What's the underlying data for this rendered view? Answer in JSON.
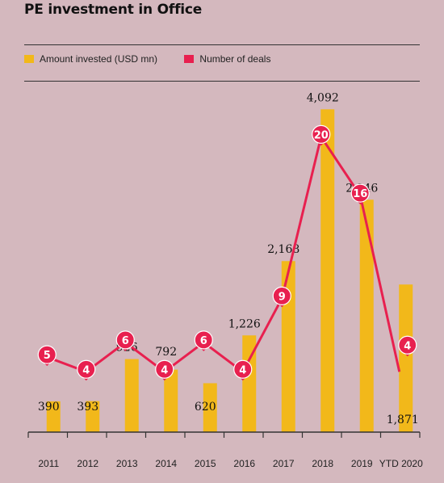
{
  "title": "PE investment in Office",
  "legend": {
    "amount_label": "Amount invested (USD mn)",
    "deals_label": "Number of deals"
  },
  "colors": {
    "bar": "#f2b81a",
    "line": "#e8204f",
    "background": "#d4b8be",
    "text": "#111111"
  },
  "chart_data": {
    "type": "bar",
    "categories": [
      "2011",
      "2012",
      "2013",
      "2014",
      "2015",
      "2016",
      "2017",
      "2018",
      "2019",
      "YTD 2020"
    ],
    "series": [
      {
        "name": "Amount invested (USD mn)",
        "type": "bar",
        "values": [
          390,
          393,
          926,
          792,
          620,
          1226,
          2168,
          4092,
          2946,
          1871
        ],
        "labels": [
          "390",
          "393",
          "926",
          "792",
          "620",
          "1,226",
          "2,168",
          "4,092",
          "2,946",
          "1,871"
        ]
      },
      {
        "name": "Number of deals",
        "type": "line",
        "values": [
          5,
          4,
          6,
          4,
          6,
          4,
          9,
          20,
          16,
          4
        ]
      }
    ],
    "ylim": [
      0,
      4300
    ],
    "deals_ylim": [
      0,
      22
    ],
    "grid": false,
    "legend": "top-left"
  }
}
